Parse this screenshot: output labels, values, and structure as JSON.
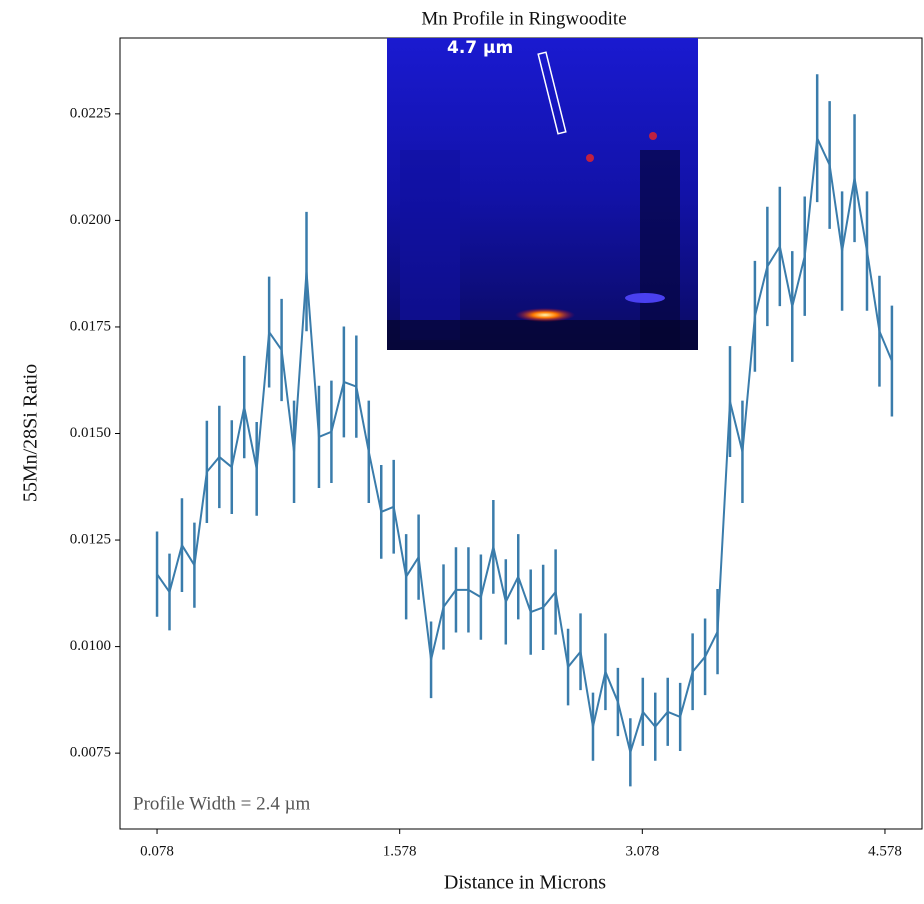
{
  "chart_data": {
    "type": "errorbar",
    "title": "Mn Profile in Ringwoodite",
    "xlabel": "Distance in Microns",
    "ylabel": "55Mn/28Si Ratio",
    "annotations": [
      "Profile Width = 2.4 µm",
      "4.7 µm"
    ],
    "x": [
      0.078,
      0.155,
      0.232,
      0.309,
      0.386,
      0.463,
      0.54,
      0.617,
      0.694,
      0.771,
      0.848,
      0.925,
      1.002,
      1.079,
      1.156,
      1.233,
      1.31,
      1.387,
      1.464,
      1.541,
      1.618,
      1.695,
      1.772,
      1.849,
      1.926,
      2.003,
      2.08,
      2.157,
      2.234,
      2.311,
      2.388,
      2.465,
      2.542,
      2.619,
      2.696,
      2.773,
      2.85,
      2.927,
      3.004,
      3.081,
      3.158,
      3.235,
      3.312,
      3.389,
      3.466,
      3.543,
      3.62,
      3.697,
      3.774,
      3.851,
      3.928,
      4.005,
      4.082,
      4.159,
      4.236,
      4.313,
      4.39,
      4.467,
      4.544,
      4.621
    ],
    "series": [
      {
        "color": "#3a7cab",
        "values": [
          0.0117,
          0.01128,
          0.01238,
          0.01191,
          0.0141,
          0.01445,
          0.01421,
          0.01562,
          0.01417,
          0.01738,
          0.01696,
          0.01457,
          0.0188,
          0.01492,
          0.01504,
          0.01621,
          0.0161,
          0.01457,
          0.01316,
          0.01328,
          0.01164,
          0.0121,
          0.00969,
          0.01093,
          0.01133,
          0.01133,
          0.01116,
          0.01234,
          0.01105,
          0.01164,
          0.01081,
          0.01092,
          0.01128,
          0.00952,
          0.00988,
          0.00812,
          0.00941,
          0.0087,
          0.00752,
          0.00847,
          0.00812,
          0.00847,
          0.00835,
          0.00941,
          0.00976,
          0.01035,
          0.01575,
          0.01457,
          0.01775,
          0.01892,
          0.01939,
          0.01798,
          0.01916,
          0.02193,
          0.0213,
          0.01928,
          0.02099,
          0.01928,
          0.0174,
          0.0167
        ],
        "errors": [
          0.001,
          0.0009,
          0.0011,
          0.001,
          0.0012,
          0.0012,
          0.0011,
          0.0012,
          0.0011,
          0.0013,
          0.0012,
          0.0012,
          0.0014,
          0.0012,
          0.0012,
          0.0013,
          0.0012,
          0.0012,
          0.0011,
          0.0011,
          0.001,
          0.001,
          0.0009,
          0.001,
          0.001,
          0.001,
          0.001,
          0.0011,
          0.001,
          0.001,
          0.001,
          0.001,
          0.001,
          0.0009,
          0.0009,
          0.0008,
          0.0009,
          0.0008,
          0.0008,
          0.0008,
          0.0008,
          0.0008,
          0.0008,
          0.0009,
          0.0009,
          0.001,
          0.0013,
          0.0012,
          0.0013,
          0.0014,
          0.0014,
          0.0013,
          0.0014,
          0.0015,
          0.0015,
          0.0014,
          0.0015,
          0.0014,
          0.0013,
          0.0013
        ]
      }
    ],
    "xlim": [
      -0.151,
      4.807
    ],
    "ylim": [
      0.00572,
      0.02428
    ],
    "xticks": [
      0.078,
      1.578,
      3.078,
      4.578
    ],
    "yticks": [
      0.0075,
      {
        "value": 0.01,
        "label": "0.0100"
      },
      0.0125,
      {
        "value": 0.015,
        "label": "0.0150"
      },
      0.0175,
      {
        "value": 0.02,
        "label": "0.0200"
      },
      0.0225
    ]
  }
}
